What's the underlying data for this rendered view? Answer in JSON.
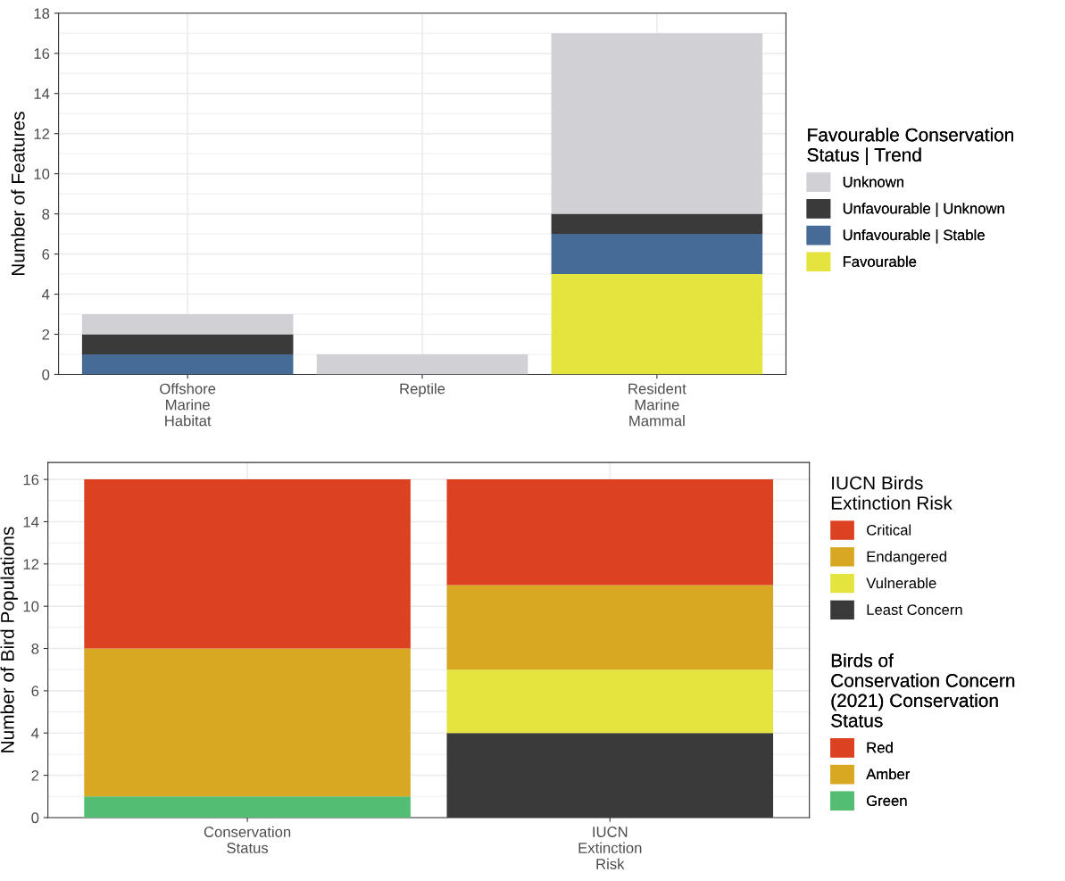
{
  "chart_data": [
    {
      "type": "bar",
      "stacked": true,
      "ylabel": "Number of Features",
      "legend_title": [
        "Favourable Conservation Status | Trend"
      ],
      "legend": "right",
      "grid": true,
      "categories": [
        "Offshore Marine Habitat",
        "Reptile",
        "Resident Marine Mammal"
      ],
      "ylim": [
        0,
        18
      ],
      "yticks": [
        0,
        2,
        4,
        6,
        8,
        10,
        12,
        14,
        16,
        18
      ],
      "series": [
        {
          "name": "Favourable",
          "color": "#e4e43f",
          "values": [
            null,
            null,
            5
          ]
        },
        {
          "name": "Unfavourable | Stable",
          "color": "#456b96",
          "values": [
            1,
            null,
            2
          ]
        },
        {
          "name": "Unfavourable | Unknown",
          "color": "#3a3a3a",
          "values": [
            1,
            null,
            1
          ]
        },
        {
          "name": "Unknown",
          "color": "#d0d0d5",
          "values": [
            1,
            1,
            9
          ]
        }
      ]
    },
    {
      "type": "bar",
      "stacked": true,
      "ylabel": "Number of Bird Populations",
      "legend_title": [
        "IUCN Birds Extinction Risk",
        "Birds of Conservation Concern (2021) Conservation Status"
      ],
      "legend": "right",
      "grid": true,
      "categories": [
        "Conservation Status",
        "IUCN Extinction Risk"
      ],
      "ylim": [
        0,
        16.8
      ],
      "yticks": [
        0,
        2,
        4,
        6,
        8,
        10,
        12,
        14,
        16
      ],
      "series": [
        {
          "name": "Least Concern",
          "color": "#3a3a3a",
          "values": [
            null,
            4
          ]
        },
        {
          "name": "Vulnerable",
          "color": "#e4e43f",
          "values": [
            null,
            3
          ]
        },
        {
          "name": "Endangered",
          "color": "#d9a822",
          "values": [
            null,
            4
          ]
        },
        {
          "name": "Critical",
          "color": "#dc4122",
          "values": [
            null,
            5
          ]
        },
        {
          "name": "Green",
          "color": "#52bd73",
          "values": [
            1,
            null
          ]
        },
        {
          "name": "Amber",
          "color": "#d9a822",
          "values": [
            7,
            null
          ]
        },
        {
          "name": "Red",
          "color": "#dc4122",
          "values": [
            8,
            null
          ]
        }
      ]
    }
  ]
}
